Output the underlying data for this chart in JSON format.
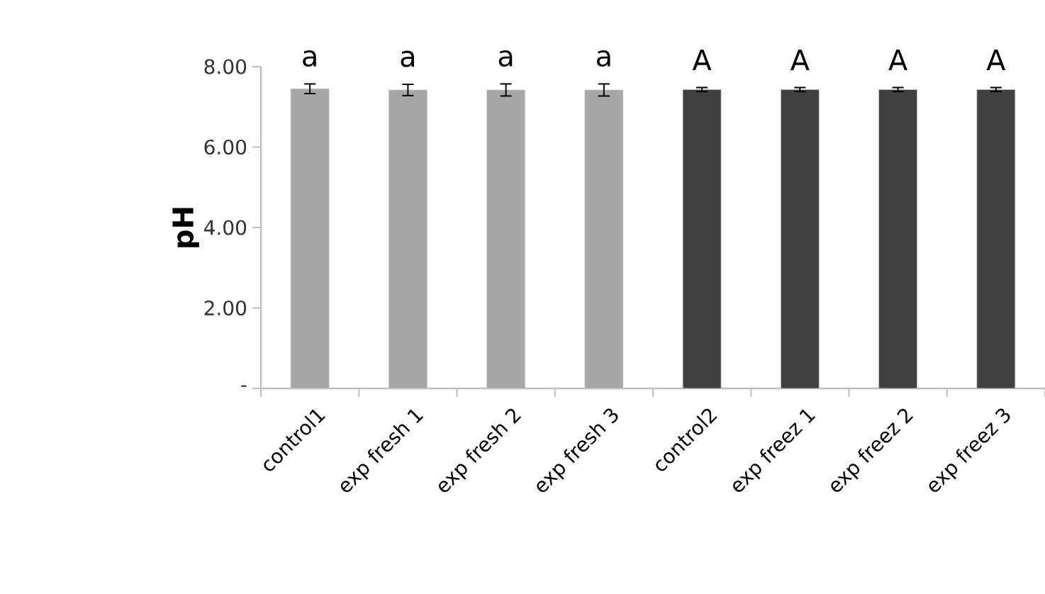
{
  "chart_data": {
    "type": "bar",
    "ylabel": "pH",
    "categories": [
      "control1",
      "exp fresh 1",
      "exp fresh 2",
      "exp fresh 3",
      "control2",
      "exp freez 1",
      "exp freez 2",
      "exp freez 3"
    ],
    "values": [
      7.45,
      7.42,
      7.42,
      7.42,
      7.43,
      7.43,
      7.43,
      7.43
    ],
    "errors": [
      0.12,
      0.14,
      0.15,
      0.15,
      0.05,
      0.05,
      0.05,
      0.05
    ],
    "colors": [
      "#a6a6a6",
      "#a6a6a6",
      "#a6a6a6",
      "#a6a6a6",
      "#404040",
      "#404040",
      "#404040",
      "#404040"
    ],
    "ylim": [
      0,
      8
    ],
    "yticks": [
      {
        "value": 0,
        "label": "-"
      },
      {
        "value": 2,
        "label": "2.00"
      },
      {
        "value": 4,
        "label": "4.00"
      },
      {
        "value": 6,
        "label": "6.00"
      },
      {
        "value": 8,
        "label": "8.00"
      }
    ],
    "annotations": [
      {
        "text": "a",
        "x": "control1",
        "y": 7.45
      },
      {
        "text": "a",
        "x": "exp fresh 1",
        "y": 7.42
      },
      {
        "text": "a",
        "x": "exp fresh 2",
        "y": 7.42
      },
      {
        "text": "a",
        "x": "exp fresh 3",
        "y": 7.42
      },
      {
        "text": "A",
        "x": "control2",
        "y": 7.43
      },
      {
        "text": "A",
        "x": "exp freez 1",
        "y": 7.43
      },
      {
        "text": "A",
        "x": "exp freez 2",
        "y": 7.43
      },
      {
        "text": "A",
        "x": "exp freez 3",
        "y": 7.43
      }
    ]
  }
}
